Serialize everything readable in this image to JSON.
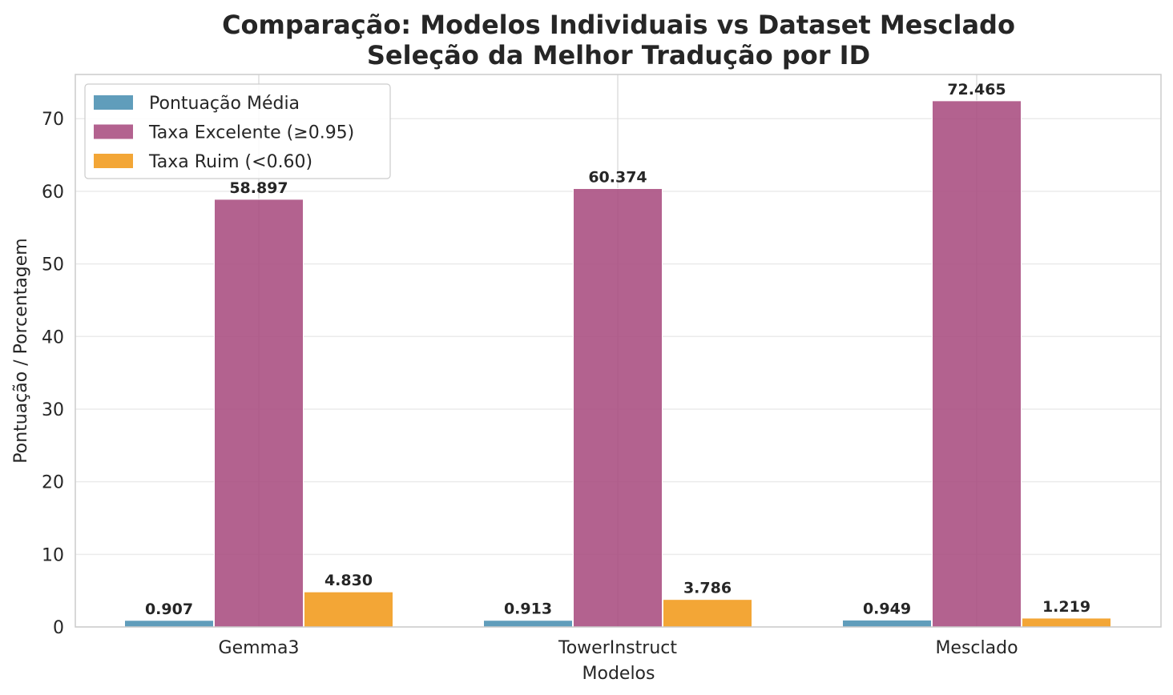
{
  "chart_data": {
    "type": "bar",
    "title_line1": "Comparação: Modelos Individuais vs Dataset Mesclado",
    "title_line2": "Seleção da Melhor Tradução por ID",
    "xlabel": "Modelos",
    "ylabel": "Pontuação / Porcentagem",
    "categories": [
      "Gemma3",
      "TowerInstruct",
      "Mesclado"
    ],
    "series": [
      {
        "name": "Pontuação Média",
        "values": [
          0.907,
          0.913,
          0.949
        ],
        "labels": [
          "0.907",
          "0.913",
          "0.949"
        ],
        "color": "#4a90b2"
      },
      {
        "name": "Taxa Excelente (≥0.95)",
        "values": [
          58.897,
          60.374,
          72.465
        ],
        "labels": [
          "58.897",
          "60.374",
          "72.465"
        ],
        "color": "#a84c80"
      },
      {
        "name": "Taxa Ruim (<0.60)",
        "values": [
          4.83,
          3.786,
          1.219
        ],
        "labels": [
          "4.830",
          "3.786",
          "1.219"
        ],
        "color": "#f19a1a"
      }
    ],
    "yticks": [
      0,
      10,
      20,
      30,
      40,
      50,
      60,
      70
    ],
    "ylim": [
      0,
      76.09
    ],
    "grid": true,
    "legend_position": "top-left"
  }
}
